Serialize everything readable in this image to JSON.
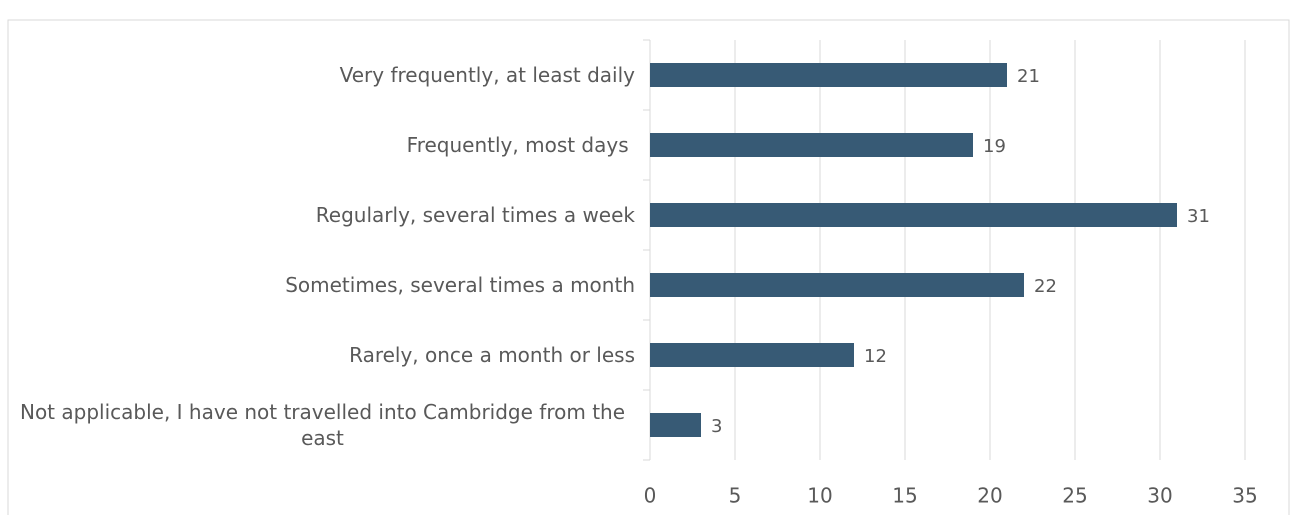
{
  "chart_data": {
    "type": "bar",
    "orientation": "horizontal",
    "categories": [
      "Very frequently, at least daily",
      "Frequently, most days ",
      "Regularly, several times a week",
      "Sometimes, several times a month",
      "Rarely, once a month or less",
      "Not applicable, I have not travelled into Cambridge from the east"
    ],
    "values": [
      21,
      19,
      31,
      22,
      12,
      3
    ],
    "color": "#375a75",
    "xlim": [
      0,
      35
    ],
    "xticks": [
      0,
      5,
      10,
      15,
      20,
      25,
      30,
      35
    ],
    "grid": true
  }
}
